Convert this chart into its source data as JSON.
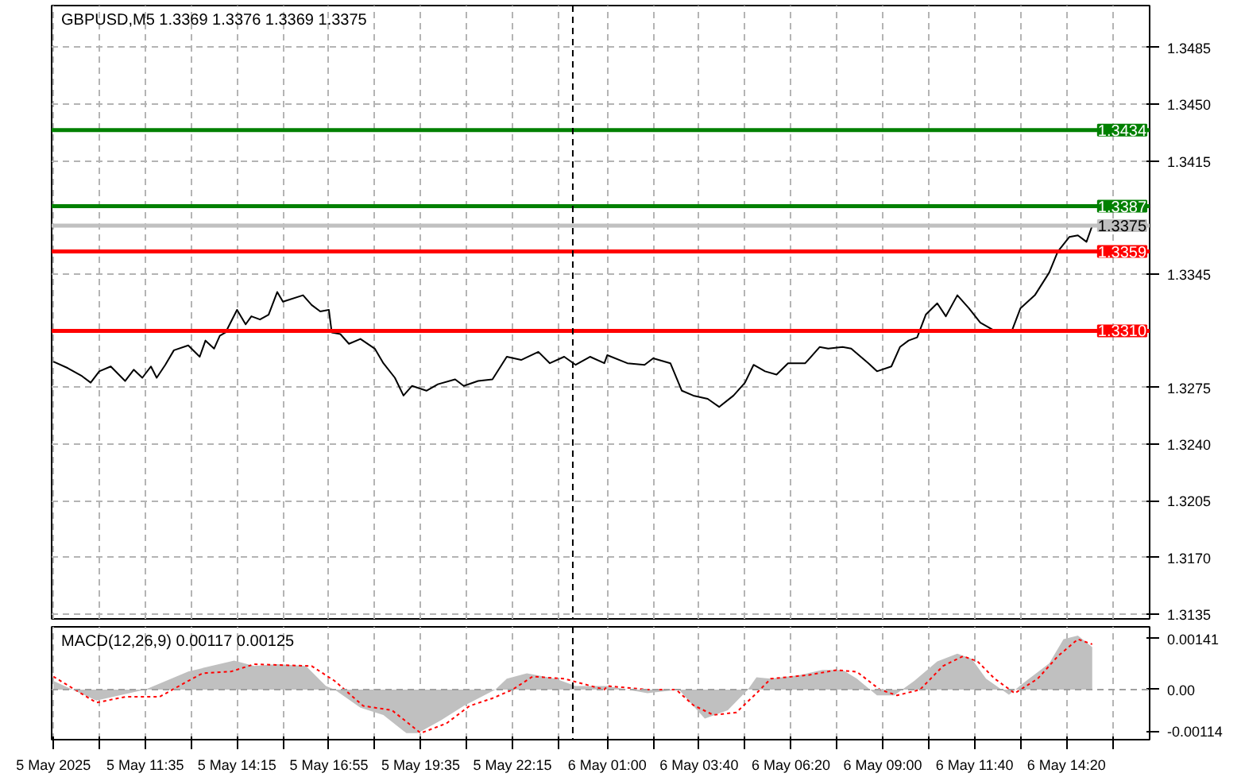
{
  "chart_data": [
    {
      "type": "line",
      "title": "GBPUSD,M5  1.3369 1.3376 1.3369 1.3375",
      "xlim": [
        "2025-05-05T08:52",
        "2025-05-06T16:45"
      ],
      "ylim": [
        1.3132,
        1.3511
      ],
      "xticks": [
        "2025-05-05T08:55",
        "2025-05-05T10:15",
        "2025-05-05T11:35",
        "2025-05-05T12:55",
        "2025-05-05T14:15",
        "2025-05-05T15:35",
        "2025-05-05T16:55",
        "2025-05-05T18:15",
        "2025-05-05T19:35",
        "2025-05-05T20:55",
        "2025-05-05T22:15",
        "2025-05-05T23:35",
        "2025-05-06T01:00",
        "2025-05-06T02:20",
        "2025-05-06T03:40",
        "2025-05-06T05:00",
        "2025-05-06T06:20",
        "2025-05-06T07:40",
        "2025-05-06T09:00",
        "2025-05-06T10:20",
        "2025-05-06T11:40",
        "2025-05-06T13:00",
        "2025-05-06T14:20",
        "2025-05-06T15:40"
      ],
      "yticks": [
        1.3135,
        {
          "value": 1.317,
          "label": "1.3170"
        },
        1.3205,
        {
          "value": 1.324,
          "label": "1.3240"
        },
        1.3275,
        1.3345,
        1.3415,
        {
          "value": 1.345,
          "label": "1.3450"
        },
        1.3485
      ],
      "tick_labels": "y",
      "grid": true,
      "series": [
        {
          "color": "#000000",
          "x": [
            "2025-05-05T08:55",
            "2025-05-05T09:20",
            "2025-05-05T09:45",
            "2025-05-05T10:00",
            "2025-05-05T10:15",
            "2025-05-05T10:35",
            "2025-05-05T11:00",
            "2025-05-05T11:15",
            "2025-05-05T11:30",
            "2025-05-05T11:45",
            "2025-05-05T11:55",
            "2025-05-05T12:10",
            "2025-05-05T12:25",
            "2025-05-05T12:50",
            "2025-05-05T13:10",
            "2025-05-05T13:20",
            "2025-05-05T13:35",
            "2025-05-05T13:45",
            "2025-05-05T13:55",
            "2025-05-05T14:15",
            "2025-05-05T14:30",
            "2025-05-05T14:40",
            "2025-05-05T14:55",
            "2025-05-05T15:10",
            "2025-05-05T15:25",
            "2025-05-05T15:35",
            "2025-05-05T16:10",
            "2025-05-05T16:25",
            "2025-05-05T16:40",
            "2025-05-05T16:55",
            "2025-05-05T17:00",
            "2025-05-05T17:15",
            "2025-05-05T17:30",
            "2025-05-05T17:50",
            "2025-05-05T18:15",
            "2025-05-05T18:30",
            "2025-05-05T18:50",
            "2025-05-05T19:05",
            "2025-05-05T19:20",
            "2025-05-05T19:45",
            "2025-05-05T20:05",
            "2025-05-05T20:35",
            "2025-05-05T20:50",
            "2025-05-05T21:15",
            "2025-05-05T21:40",
            "2025-05-05T22:05",
            "2025-05-05T22:30",
            "2025-05-05T23:00",
            "2025-05-05T23:20",
            "2025-05-05T23:45",
            "2025-05-06T00:05",
            "2025-05-06T00:30",
            "2025-05-06T00:55",
            "2025-05-06T01:00",
            "2025-05-06T01:35",
            "2025-05-06T02:05",
            "2025-05-06T02:20",
            "2025-05-06T02:50",
            "2025-05-06T03:10",
            "2025-05-06T03:30",
            "2025-05-06T03:55",
            "2025-05-06T04:15",
            "2025-05-06T04:40",
            "2025-05-06T05:00",
            "2025-05-06T05:15",
            "2025-05-06T05:35",
            "2025-05-06T05:55",
            "2025-05-06T06:15",
            "2025-05-06T06:45",
            "2025-05-06T07:10",
            "2025-05-06T07:25",
            "2025-05-06T07:50",
            "2025-05-06T08:05",
            "2025-05-06T08:35",
            "2025-05-06T08:50",
            "2025-05-06T09:15",
            "2025-05-06T09:30",
            "2025-05-06T09:45",
            "2025-05-06T10:00",
            "2025-05-06T10:15",
            "2025-05-06T10:35",
            "2025-05-06T10:50",
            "2025-05-06T11:10",
            "2025-05-06T11:30",
            "2025-05-06T11:50",
            "2025-05-06T12:15",
            "2025-05-06T12:45",
            "2025-05-06T13:00",
            "2025-05-06T13:25",
            "2025-05-06T13:50",
            "2025-05-06T14:05",
            "2025-05-06T14:25",
            "2025-05-06T14:40",
            "2025-05-06T14:55",
            "2025-05-06T15:05"
          ],
          "values": [
            1.3291,
            1.3287,
            1.3282,
            1.3278,
            1.3285,
            1.3288,
            1.3279,
            1.3286,
            1.3281,
            1.3288,
            1.3281,
            1.3289,
            1.3298,
            1.3301,
            1.3294,
            1.3304,
            1.3299,
            1.3307,
            1.3309,
            1.3323,
            1.3314,
            1.3319,
            1.3317,
            1.332,
            1.3334,
            1.3328,
            1.3332,
            1.3326,
            1.3322,
            1.3323,
            1.3309,
            1.3308,
            1.3302,
            1.3305,
            1.3299,
            1.329,
            1.3281,
            1.327,
            1.3276,
            1.3273,
            1.3277,
            1.328,
            1.3276,
            1.3279,
            1.328,
            1.3294,
            1.3292,
            1.3297,
            1.329,
            1.3294,
            1.3289,
            1.3294,
            1.329,
            1.3295,
            1.329,
            1.3289,
            1.3293,
            1.329,
            1.3273,
            1.327,
            1.3268,
            1.3263,
            1.327,
            1.3278,
            1.3289,
            1.3285,
            1.3283,
            1.329,
            1.329,
            1.33,
            1.3299,
            1.33,
            1.3299,
            1.329,
            1.3285,
            1.3288,
            1.33,
            1.3304,
            1.3306,
            1.332,
            1.3327,
            1.3319,
            1.3332,
            1.3324,
            1.3315,
            1.331,
            1.331,
            1.3324,
            1.3332,
            1.3346,
            1.3359,
            1.3368,
            1.3369,
            1.3365,
            1.3375
          ]
        }
      ],
      "ref_lines": [
        {
          "axis": "y",
          "value": 1.3434,
          "label": "1.3434",
          "color": "#008000"
        },
        {
          "axis": "y",
          "value": 1.3387,
          "label": "1.3387",
          "color": "#008000"
        },
        {
          "axis": "y",
          "value": 1.3375,
          "label": "1.3375",
          "color": "#c0c0c0"
        },
        {
          "axis": "y",
          "value": 1.3359,
          "label": "1.3359",
          "color": "#ff0000"
        },
        {
          "axis": "y",
          "value": 1.331,
          "label": "1.3310",
          "color": "#ff0000"
        },
        {
          "axis": "x",
          "value": "2025-05-06T00:00",
          "color": "#000000",
          "line_style": "dashed"
        }
      ]
    },
    {
      "type": "area",
      "title": "MACD(12,26,9) 0.00117 0.00125",
      "xlim": [
        "2025-05-05T08:52",
        "2025-05-06T16:45"
      ],
      "ylim": [
        -0.00138,
        0.00173
      ],
      "xticks": [
        {
          "value": "2025-05-05T08:55",
          "label": "5 May 2025"
        },
        {
          "value": "2025-05-05T10:15",
          "label": null
        },
        {
          "value": "2025-05-05T11:35",
          "label": "5 May 11:35"
        },
        {
          "value": "2025-05-05T12:55",
          "label": null
        },
        {
          "value": "2025-05-05T14:15",
          "label": "5 May 14:15"
        },
        {
          "value": "2025-05-05T15:35",
          "label": null
        },
        {
          "value": "2025-05-05T16:55",
          "label": "5 May 16:55"
        },
        {
          "value": "2025-05-05T18:15",
          "label": null
        },
        {
          "value": "2025-05-05T19:35",
          "label": "5 May 19:35"
        },
        {
          "value": "2025-05-05T20:55",
          "label": null
        },
        {
          "value": "2025-05-05T22:15",
          "label": "5 May 22:15"
        },
        {
          "value": "2025-05-05T23:35",
          "label": null
        },
        {
          "value": "2025-05-06T01:00",
          "label": "6 May 01:00"
        },
        {
          "value": "2025-05-06T02:20",
          "label": null
        },
        {
          "value": "2025-05-06T03:40",
          "label": "6 May 03:40"
        },
        {
          "value": "2025-05-06T05:00",
          "label": null
        },
        {
          "value": "2025-05-06T06:20",
          "label": "6 May 06:20"
        },
        {
          "value": "2025-05-06T07:40",
          "label": null
        },
        {
          "value": "2025-05-06T09:00",
          "label": "6 May 09:00"
        },
        {
          "value": "2025-05-06T10:20",
          "label": null
        },
        {
          "value": "2025-05-06T11:40",
          "label": "6 May 11:40"
        },
        {
          "value": "2025-05-06T13:00",
          "label": null
        },
        {
          "value": "2025-05-06T14:20",
          "label": "6 May 14:20"
        },
        {
          "value": "2025-05-06T15:40",
          "label": null
        }
      ],
      "yticks": [
        -0.00114,
        {
          "value": 0,
          "label": "0.00"
        },
        0.00141
      ],
      "grid": "x",
      "series": [
        {
          "color": "#c0c0c0",
          "x": [
            "2025-05-05T08:55",
            "2025-05-05T10:10",
            "2025-05-05T11:35",
            "2025-05-05T12:50",
            "2025-05-05T14:10",
            "2025-05-05T14:45",
            "2025-05-05T15:25",
            "2025-05-05T16:15",
            "2025-05-05T16:50",
            "2025-05-05T17:05",
            "2025-05-05T17:50",
            "2025-05-05T18:30",
            "2025-05-05T19:10",
            "2025-05-05T19:30",
            "2025-05-05T20:10",
            "2025-05-05T20:50",
            "2025-05-05T21:45",
            "2025-05-05T22:05",
            "2025-05-05T22:40",
            "2025-05-05T23:30",
            "2025-05-06T00:05",
            "2025-05-06T00:55",
            "2025-05-06T01:00",
            "2025-05-06T02:10",
            "2025-05-06T03:05",
            "2025-05-06T03:25",
            "2025-05-06T03:50",
            "2025-05-06T04:30",
            "2025-05-06T05:05",
            "2025-05-06T05:20",
            "2025-05-06T05:45",
            "2025-05-06T06:35",
            "2025-05-06T07:15",
            "2025-05-06T07:50",
            "2025-05-06T08:15",
            "2025-05-06T08:50",
            "2025-05-06T09:20",
            "2025-05-06T09:55",
            "2025-05-06T10:35",
            "2025-05-06T11:10",
            "2025-05-06T11:35",
            "2025-05-06T12:00",
            "2025-05-06T12:40",
            "2025-05-06T13:05",
            "2025-05-06T13:50",
            "2025-05-06T14:15",
            "2025-05-06T14:40",
            "2025-05-06T15:05"
          ],
          "values": [
            0.00024,
            -0.0003,
            0,
            0.0005,
            0.0008,
            0.00065,
            0.0007,
            0.00065,
            0.0001,
            0,
            -0.0005,
            -0.0007,
            -0.0012,
            -0.0012,
            -0.00085,
            -0.00045,
            0,
            0.0003,
            0.00045,
            0.0003,
            0.0001,
            0.0001,
            0.0001,
            -0.0001,
            0,
            -0.00036,
            -0.0008,
            -0.00057,
            0,
            0.00034,
            0.0003,
            0.0004,
            0.00054,
            0.00054,
            0.0003,
            -0.00016,
            -0.00016,
            0.00024,
            0.00078,
            0.00099,
            0.00085,
            0.0003,
            -0.00014,
            0.00018,
            0.00072,
            0.00139,
            0.00149,
            0.00117
          ]
        },
        {
          "type": "line",
          "line_style": "dotted",
          "color": "#ff0000",
          "x": [
            "2025-05-05T08:55",
            "2025-05-05T10:10",
            "2025-05-05T11:00",
            "2025-05-05T12:00",
            "2025-05-05T12:50",
            "2025-05-05T13:15",
            "2025-05-05T14:05",
            "2025-05-05T14:45",
            "2025-05-05T16:25",
            "2025-05-05T17:05",
            "2025-05-05T17:55",
            "2025-05-05T18:45",
            "2025-05-05T19:35",
            "2025-05-05T20:20",
            "2025-05-05T21:00",
            "2025-05-05T21:40",
            "2025-05-05T22:15",
            "2025-05-05T22:50",
            "2025-05-05T23:45",
            "2025-05-06T00:55",
            "2025-05-06T01:00",
            "2025-05-06T02:10",
            "2025-05-06T03:00",
            "2025-05-06T03:30",
            "2025-05-06T04:05",
            "2025-05-06T04:45",
            "2025-05-06T05:20",
            "2025-05-06T05:45",
            "2025-05-06T06:50",
            "2025-05-06T07:40",
            "2025-05-06T08:15",
            "2025-05-06T08:55",
            "2025-05-06T09:25",
            "2025-05-06T10:05",
            "2025-05-06T10:45",
            "2025-05-06T11:20",
            "2025-05-06T11:45",
            "2025-05-06T12:15",
            "2025-05-06T12:50",
            "2025-05-06T13:30",
            "2025-05-06T14:05",
            "2025-05-06T14:40",
            "2025-05-06T15:05"
          ],
          "values": [
            0.00036,
            -0.00036,
            -0.0002,
            -0.0002,
            0.00024,
            0.00045,
            0.0005,
            0.0007,
            0.00065,
            0.00024,
            -0.00045,
            -0.00057,
            -0.0012,
            -0.00093,
            -0.00045,
            -0.00024,
            0,
            0.00036,
            0.0003,
            0,
            0.0001,
            0,
            0,
            -0.00043,
            -0.0007,
            -0.00063,
            -0.0001,
            0.0003,
            0.0004,
            0.00054,
            0.00049,
            0,
            -0.00016,
            0,
            0.00065,
            0.00092,
            0.00078,
            0.0003,
            -0.0001,
            0.0003,
            0.00092,
            0.00139,
            0.00125
          ]
        }
      ],
      "ref_lines": [
        {
          "axis": "y",
          "value": 0,
          "color": "#a0a0a0",
          "line_style": "dashed"
        },
        {
          "axis": "x",
          "value": "2025-05-06T00:00",
          "color": "#000000",
          "line_style": "dashed"
        }
      ]
    }
  ]
}
